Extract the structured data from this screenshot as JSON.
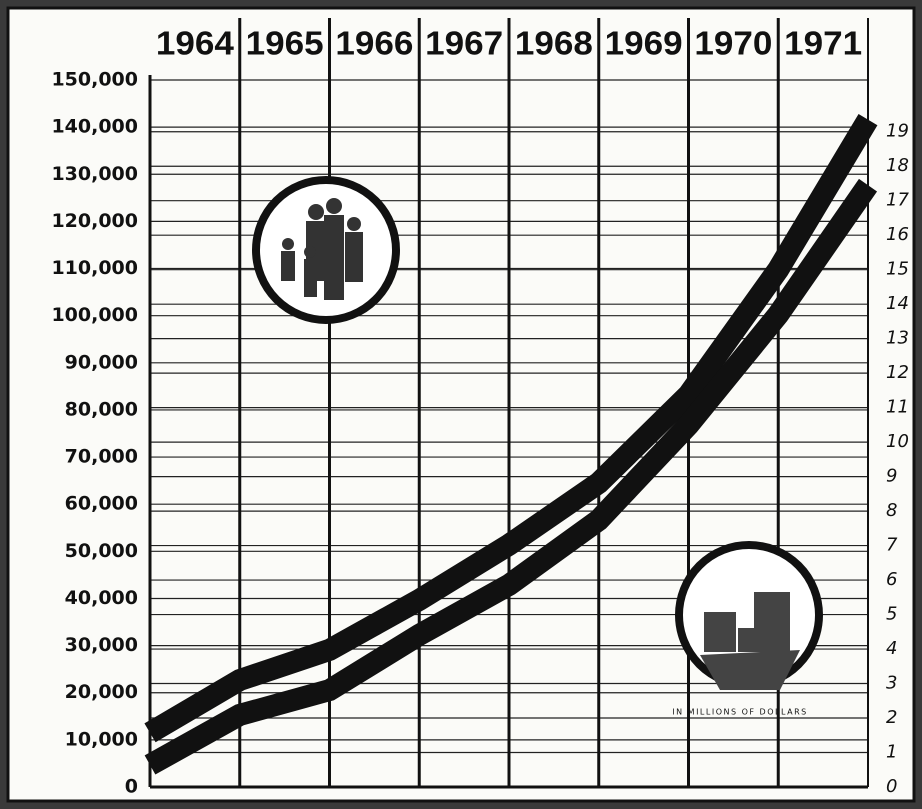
{
  "chart_data": {
    "type": "line",
    "x": [
      1964,
      1965,
      1966,
      1967,
      1968,
      1969,
      1970,
      1971,
      1972
    ],
    "xlim": [
      1964,
      1972
    ],
    "xticks": [
      {
        "value": 1964.5,
        "label": "1964"
      },
      {
        "value": 1965.5,
        "label": "1965"
      },
      {
        "value": 1966.5,
        "label": "1966"
      },
      {
        "value": 1967.5,
        "label": "1967"
      },
      {
        "value": 1968.5,
        "label": "1968"
      },
      {
        "value": 1969.5,
        "label": "1969"
      },
      {
        "value": 1970.5,
        "label": "1970"
      },
      {
        "value": 1971.5,
        "label": "1971"
      }
    ],
    "ylim": [
      0,
      150000
    ],
    "yticks": [
      0,
      {
        "value": 10000,
        "label": "10,000"
      },
      {
        "value": 20000,
        "label": "20,000"
      },
      {
        "value": 30000,
        "label": "30,000"
      },
      {
        "value": 40000,
        "label": "40,000"
      },
      {
        "value": 50000,
        "label": "50,000"
      },
      {
        "value": 60000,
        "label": "60,000"
      },
      {
        "value": 70000,
        "label": "70,000"
      },
      {
        "value": 80000,
        "label": "80,000"
      },
      {
        "value": 90000,
        "label": "90,000"
      },
      {
        "value": 100000,
        "label": "100,000"
      },
      {
        "value": 110000,
        "label": "110,000"
      },
      {
        "value": 120000,
        "label": "120,000"
      },
      {
        "value": 130000,
        "label": "130,000"
      },
      {
        "value": 140000,
        "label": "140,000"
      },
      {
        "value": 150000,
        "label": "150,000"
      }
    ],
    "y2lim": [
      0,
      20.5
    ],
    "y2ticks": [
      0,
      1,
      2,
      3,
      4,
      5,
      6,
      7,
      8,
      9,
      10,
      11,
      12,
      13,
      14,
      15,
      16,
      17,
      18,
      19
    ],
    "grid": true,
    "series": [
      {
        "color": "#111111",
        "values": [
          11500,
          22700,
          29100,
          39700,
          51400,
          64500,
          83200,
          109800,
          141600
        ]
      },
      {
        "color": "#111111",
        "axis": "y2",
        "values": [
          0.64,
          2.09,
          2.81,
          4.41,
          5.86,
          7.74,
          10.5,
          13.7,
          17.45
        ]
      }
    ],
    "annotation": "IN MILLIONS OF DOLLARS"
  }
}
